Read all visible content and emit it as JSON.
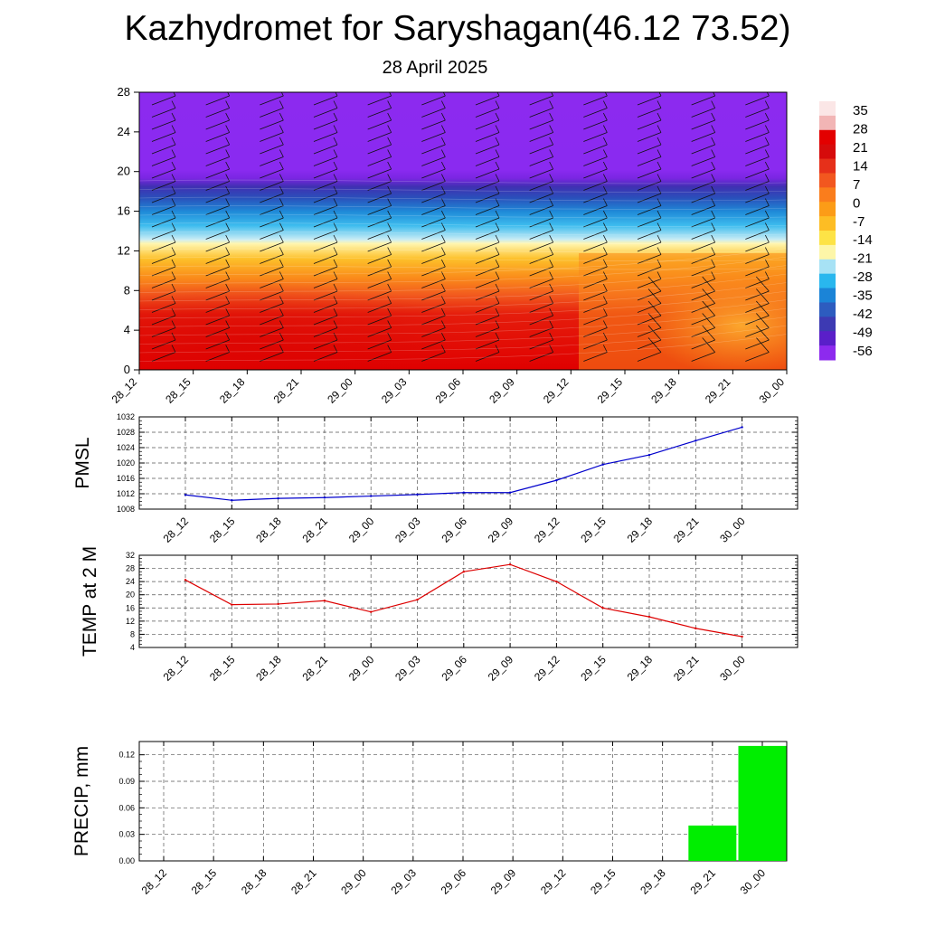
{
  "title": "Kazhydromet for Saryshagan(46.12 73.52)",
  "subtitle": "28 April 2025",
  "chart_data": [
    {
      "type": "heatmap",
      "name": "cross-section",
      "x": [
        "28_12",
        "28_15",
        "28_18",
        "28_21",
        "29_00",
        "29_03",
        "29_06",
        "29_09",
        "29_12",
        "29_15",
        "29_18",
        "29_21",
        "30_00"
      ],
      "y_ticks": [
        0,
        4,
        8,
        12,
        16,
        20,
        24,
        28
      ],
      "ylim": [
        0,
        28
      ],
      "colorbar": {
        "labels": [
          "35",
          "28",
          "21",
          "14",
          "7",
          "0",
          "-7",
          "-14",
          "-21",
          "-28",
          "-35",
          "-42",
          "-49",
          "-56"
        ],
        "colors": [
          "#fbe6e6",
          "#f2b5b5",
          "#e30000",
          "#d60b0b",
          "#e6301a",
          "#f2571f",
          "#fa7d1c",
          "#fc9c17",
          "#fdbd24",
          "#fde346",
          "#fdf6a8",
          "#a7e2f5",
          "#29b7ee",
          "#1b84d7",
          "#2d5cbf",
          "#3d3ab3",
          "#5a1fc9",
          "#8d2aee"
        ]
      }
    },
    {
      "type": "line",
      "name": "pmsl",
      "ylabel": "PMSL",
      "categories": [
        "28_12",
        "28_15",
        "28_18",
        "28_21",
        "29_00",
        "29_03",
        "29_06",
        "29_09",
        "29_12",
        "29_15",
        "29_18",
        "29_21",
        "30_00"
      ],
      "values": [
        1011.7,
        1010.3,
        1010.8,
        1011.0,
        1011.4,
        1011.8,
        1012.3,
        1012.3,
        1015.5,
        1019.6,
        1022.1,
        1025.8,
        1029.3
      ],
      "y_ticks": [
        1008,
        1012,
        1016,
        1020,
        1024,
        1028,
        1032
      ],
      "ylim": [
        1008,
        1032
      ],
      "color": "#0000cc"
    },
    {
      "type": "line",
      "name": "temp",
      "ylabel": "TEMP at 2 M",
      "categories": [
        "28_12",
        "28_15",
        "28_18",
        "28_21",
        "29_00",
        "29_03",
        "29_06",
        "29_09",
        "29_12",
        "29_15",
        "29_18",
        "29_21",
        "30_00"
      ],
      "values": [
        24.5,
        17.0,
        17.2,
        18.2,
        14.8,
        18.5,
        27.0,
        29.2,
        24.0,
        16.0,
        13.3,
        9.8,
        7.3
      ],
      "y_ticks": [
        4,
        8,
        12,
        16,
        20,
        24,
        28,
        32
      ],
      "ylim": [
        4,
        32
      ],
      "color": "#dd0000"
    },
    {
      "type": "bar",
      "name": "precip",
      "ylabel": "PRECIP, mm",
      "categories": [
        "28_12",
        "28_15",
        "28_18",
        "28_21",
        "29_00",
        "29_03",
        "29_06",
        "29_09",
        "29_12",
        "29_15",
        "29_18",
        "29_21",
        "30_00"
      ],
      "values": [
        0,
        0,
        0,
        0,
        0,
        0,
        0,
        0,
        0,
        0,
        0,
        0.04,
        0.13
      ],
      "y_ticks": [
        "0.00",
        "0.03",
        "0.06",
        "0.09",
        "0.12"
      ],
      "ylim": [
        0,
        0.135
      ],
      "color": "#00ee00"
    }
  ]
}
